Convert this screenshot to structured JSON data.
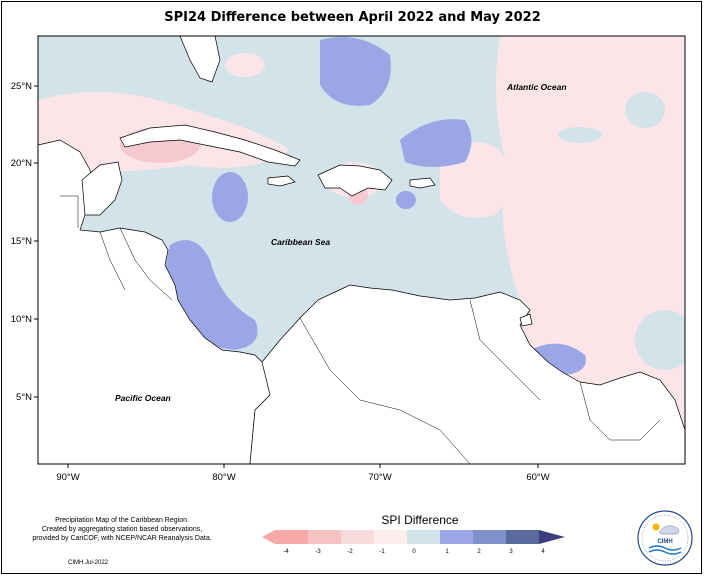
{
  "title": "SPI24 Difference between April 2022 and May 2022",
  "lat_labels": [
    "25°N",
    "20°N",
    "15°N",
    "10°N",
    "5°N"
  ],
  "lon_labels": [
    "90°W",
    "80°W",
    "70°W",
    "60°W"
  ],
  "ocean_labels": {
    "atlantic": "Atlantic Ocean",
    "caribbean": "Caribbean Sea",
    "pacific": "Pacific Ocean"
  },
  "credit": {
    "line1": "Precipitation Map of the Caribbean Region.",
    "line2": "Created by aggregating station based observations,",
    "line3": "provided by CariCOF, with NCEP/NCAR Reanalysis Data.",
    "date": "CIMH Jul-2022"
  },
  "legend": {
    "title": "SPI Difference",
    "ticks": [
      "-4",
      "-3",
      "-2",
      "-1",
      "0",
      "1",
      "2",
      "3",
      "4"
    ],
    "colors": [
      "#f7a8a8",
      "#f6c2c2",
      "#f8dcdc",
      "#fdeeee",
      "#d2e3ea",
      "#9aa6e6",
      "#7e92c9",
      "#5a6a9e"
    ]
  },
  "logo_text": "CIMH",
  "colors": {
    "ocean_light_blue": "#d2e3ea",
    "light_pink": "#fbe5e8",
    "pink": "#f6c8d0",
    "blue": "#9aa6e6",
    "dark_blue": "#7c86c4",
    "land": "#ffffff"
  }
}
